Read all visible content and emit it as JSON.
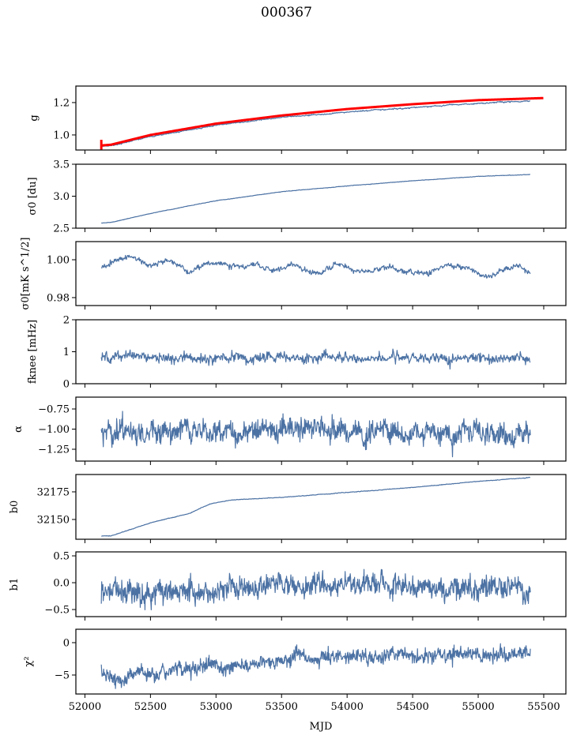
{
  "title": "000367",
  "chart_data": {
    "type": "line",
    "title": "000367",
    "xlabel": "MJD",
    "xlim": [
      51931,
      55669
    ],
    "xticks": [
      52000,
      52500,
      53000,
      53500,
      54000,
      54500,
      55000,
      55500
    ],
    "xtick_labels": [
      "52000",
      "52500",
      "53000",
      "53500",
      "54000",
      "54500",
      "55000",
      "55500"
    ],
    "grid": false,
    "line_color": "#4c72a4",
    "overlay_color": "#ff0000",
    "panels": [
      {
        "name": "gain",
        "ylabel": "g",
        "ylim": [
          0.907,
          1.302
        ],
        "yticks": [
          1.0,
          1.2
        ],
        "ytick_labels": [
          "1.0",
          "1.2"
        ],
        "series": [
          {
            "name": "g",
            "color": "#4c72a4",
            "x_range": [
              52125,
              55400
            ],
            "anchors_x": [
              52125,
              52200,
              52500,
              53000,
              53500,
              54000,
              54500,
              55000,
              55400
            ],
            "anchors_y": [
              0.93,
              0.935,
              0.99,
              1.06,
              1.11,
              1.14,
              1.17,
              1.195,
              1.21
            ],
            "noise": 0.002,
            "width": 1.2
          },
          {
            "name": "g_fit",
            "color": "#ff0000",
            "x_range": [
              52125,
              55500
            ],
            "anchors_x": [
              52125,
              52200,
              52500,
              53000,
              53500,
              54000,
              54500,
              55000,
              55500
            ],
            "anchors_y": [
              0.935,
              0.94,
              1.0,
              1.07,
              1.12,
              1.16,
              1.19,
              1.215,
              1.228
            ],
            "noise": 0.0,
            "width": 3.0,
            "errorbar_start": {
              "x": 52125,
              "y": 0.94,
              "err": 0.03
            }
          }
        ]
      },
      {
        "name": "sigma0-du",
        "ylabel": "σ0 [du]",
        "ylim": [
          2.5,
          3.5
        ],
        "yticks": [
          2.5,
          3.0,
          3.5
        ],
        "ytick_labels": [
          "2.5",
          "3.0",
          "3.5"
        ],
        "series": [
          {
            "name": "sigma0_du",
            "color": "#4c72a4",
            "x_range": [
              52125,
              55400
            ],
            "anchors_x": [
              52125,
              52200,
              52500,
              53000,
              53500,
              54000,
              54500,
              55000,
              55400
            ],
            "anchors_y": [
              2.58,
              2.59,
              2.73,
              2.93,
              3.07,
              3.16,
              3.24,
              3.31,
              3.34
            ],
            "noise": 0.002,
            "width": 1.2
          }
        ]
      },
      {
        "name": "sigma0-mk",
        "ylabel": "σ0[mK s^1/2]",
        "ylim": [
          0.9758,
          1.0096
        ],
        "yticks": [
          0.98,
          1.0
        ],
        "ytick_labels": [
          "0.98",
          "1.00"
        ],
        "series": [
          {
            "name": "sigma0_mk",
            "color": "#4c72a4",
            "x_range": [
              52125,
              55400
            ],
            "anchors_x": [
              52125,
              52350,
              52500,
              52650,
              52800,
              52900,
              53050,
              53200,
              53300,
              53450,
              53600,
              53750,
              53900,
              54000,
              54150,
              54300,
              54450,
              54600,
              54750,
              54900,
              55050,
              55150,
              55300,
              55400
            ],
            "anchors_y": [
              0.996,
              1.002,
              0.997,
              1.0,
              0.994,
              0.997,
              0.998,
              0.995,
              0.998,
              0.994,
              0.998,
              0.993,
              0.997,
              0.996,
              0.993,
              0.996,
              0.994,
              0.993,
              0.997,
              0.996,
              0.991,
              0.993,
              0.997,
              0.992
            ],
            "noise": 0.0008,
            "width": 1.2
          }
        ]
      },
      {
        "name": "fknee",
        "ylabel": "fknee [mHz]",
        "ylim": [
          0,
          2
        ],
        "yticks": [
          0,
          1,
          2
        ],
        "ytick_labels": [
          "0",
          "1",
          "2"
        ],
        "series": [
          {
            "name": "fknee",
            "color": "#4c72a4",
            "x_range": [
              52125,
              55400
            ],
            "anchors_x": [
              52125,
              55400
            ],
            "anchors_y": [
              0.85,
              0.78
            ],
            "noise": 0.09,
            "width": 1.2
          }
        ]
      },
      {
        "name": "alpha",
        "ylabel": "α",
        "ylim": [
          -1.397,
          -0.603
        ],
        "yticks": [
          -1.25,
          -1.0,
          -0.75
        ],
        "ytick_labels": [
          "−1.25",
          "−1.00",
          "−0.75"
        ],
        "series": [
          {
            "name": "alpha",
            "color": "#4c72a4",
            "x_range": [
              52125,
              55400
            ],
            "anchors_x": [
              52125,
              55400
            ],
            "anchors_y": [
              -1.03,
              -1.03
            ],
            "noise": 0.075,
            "width": 1.2
          }
        ]
      },
      {
        "name": "b0",
        "ylabel": "b0",
        "ylim": [
          32132.1,
          32190.7
        ],
        "yticks": [
          32150,
          32175
        ],
        "ytick_labels": [
          "32150",
          "32175"
        ],
        "series": [
          {
            "name": "b0",
            "color": "#4c72a4",
            "x_range": [
              52125,
              55400
            ],
            "anchors_x": [
              52125,
              52200,
              52500,
              52800,
              52950,
              53100,
              53500,
              54000,
              54500,
              55000,
              55400
            ],
            "anchors_y": [
              32135.0,
              32135.2,
              32147,
              32155.5,
              32164,
              32167.5,
              32170,
              32174.5,
              32179,
              32184.5,
              32188
            ],
            "noise": 0.15,
            "width": 1.2
          }
        ]
      },
      {
        "name": "b1",
        "ylabel": "b1",
        "ylim": [
          -0.632,
          0.574
        ],
        "yticks": [
          -0.5,
          0.0,
          0.5
        ],
        "ytick_labels": [
          "−0.5",
          "0.0",
          "0.5"
        ],
        "series": [
          {
            "name": "b1",
            "color": "#4c72a4",
            "x_range": [
              52125,
              55400
            ],
            "anchors_x": [
              52125,
              52300,
              52900,
              53500,
              54500,
              55400
            ],
            "anchors_y": [
              -0.1,
              -0.2,
              -0.15,
              -0.05,
              -0.1,
              -0.08
            ],
            "noise": 0.12,
            "width": 1.2
          }
        ]
      },
      {
        "name": "chi2",
        "ylabel": "χ²",
        "ylim": [
          -7.93,
          2.07
        ],
        "yticks": [
          -5,
          0
        ],
        "ytick_labels": [
          "−5",
          "0"
        ],
        "series": [
          {
            "name": "chi2",
            "color": "#4c72a4",
            "x_range": [
              52125,
              55400
            ],
            "anchors_x": [
              52125,
              52250,
              52400,
              52550,
              52700,
              53000,
              53300,
              53700,
              54200,
              54700,
              55000,
              55400
            ],
            "anchors_y": [
              -4.5,
              -5.8,
              -4.5,
              -5.0,
              -4.0,
              -3.8,
              -3.3,
              -2.5,
              -2.0,
              -2.0,
              -1.8,
              -1.8
            ],
            "noise": 0.65,
            "width": 1.2
          }
        ]
      }
    ]
  }
}
